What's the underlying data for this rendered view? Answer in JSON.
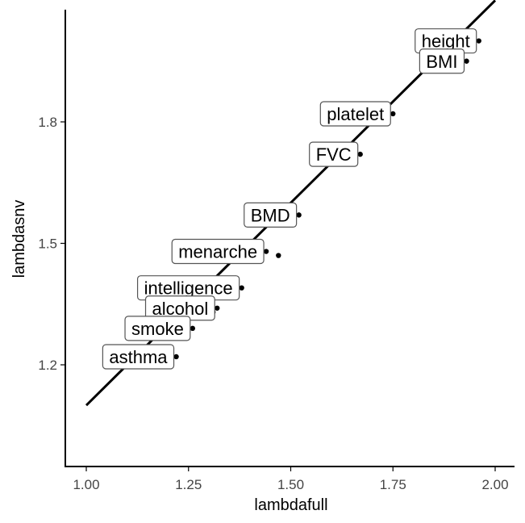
{
  "chart_data": {
    "type": "scatter",
    "title": "",
    "xlabel": "lambdafull",
    "ylabel": "lambdasnv",
    "xlim": [
      0.95,
      2.05
    ],
    "ylim": [
      1.0,
      2.06
    ],
    "x_ticks": [
      "1.00",
      "1.25",
      "1.50",
      "1.75",
      "2.00"
    ],
    "x_tick_values": [
      1.0,
      1.25,
      1.5,
      1.75,
      2.0
    ],
    "y_ticks": [
      "1.2",
      "1.5",
      "1.8"
    ],
    "y_tick_values": [
      1.2,
      1.5,
      1.8
    ],
    "grid": false,
    "legend": "none",
    "reference_line": {
      "from": [
        1.0,
        1.1
      ],
      "to": [
        2.0,
        2.1
      ]
    },
    "points": [
      {
        "label": "height",
        "x": 1.96,
        "y": 2.0,
        "anchor": "left-of-point"
      },
      {
        "label": "BMI",
        "x": 1.93,
        "y": 1.95,
        "anchor": "left-of-point"
      },
      {
        "label": "platelet",
        "x": 1.75,
        "y": 1.82,
        "anchor": "left-of-point"
      },
      {
        "label": "FVC",
        "x": 1.67,
        "y": 1.72,
        "anchor": "left-of-point"
      },
      {
        "label": "BMD",
        "x": 1.52,
        "y": 1.57,
        "anchor": "left-of-point"
      },
      {
        "label": "",
        "x": 1.47,
        "y": 1.47,
        "anchor": "left-of-point"
      },
      {
        "label": "menarche",
        "x": 1.44,
        "y": 1.48,
        "anchor": "left-of-point"
      },
      {
        "label": "intelligence",
        "x": 1.38,
        "y": 1.39,
        "anchor": "left-of-point"
      },
      {
        "label": "",
        "x": 1.31,
        "y": 1.33,
        "anchor": "left-of-point"
      },
      {
        "label": "alcohol",
        "x": 1.32,
        "y": 1.34,
        "anchor": "left-of-point"
      },
      {
        "label": "smoke",
        "x": 1.26,
        "y": 1.29,
        "anchor": "left-of-point"
      },
      {
        "label": "asthma",
        "x": 1.22,
        "y": 1.22,
        "anchor": "left-of-point"
      }
    ]
  }
}
